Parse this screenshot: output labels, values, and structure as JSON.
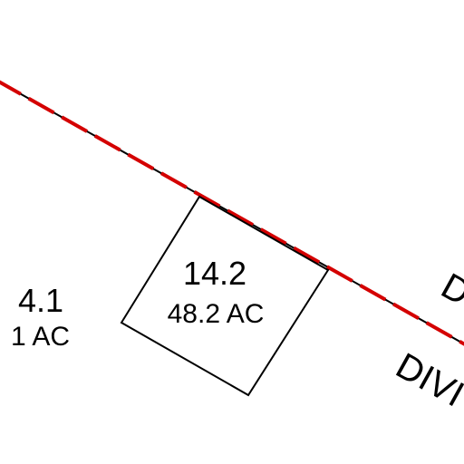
{
  "parcels": [
    {
      "number": "4.1",
      "acreage": "1 AC"
    },
    {
      "number": "14.2",
      "acreage": "48.2 AC"
    }
  ],
  "edge_labels": [
    {
      "text": "D"
    },
    {
      "text": "DIVI"
    }
  ],
  "colors": {
    "boundary_dash": "#d40000",
    "line": "#000000",
    "background": "#ffffff"
  }
}
